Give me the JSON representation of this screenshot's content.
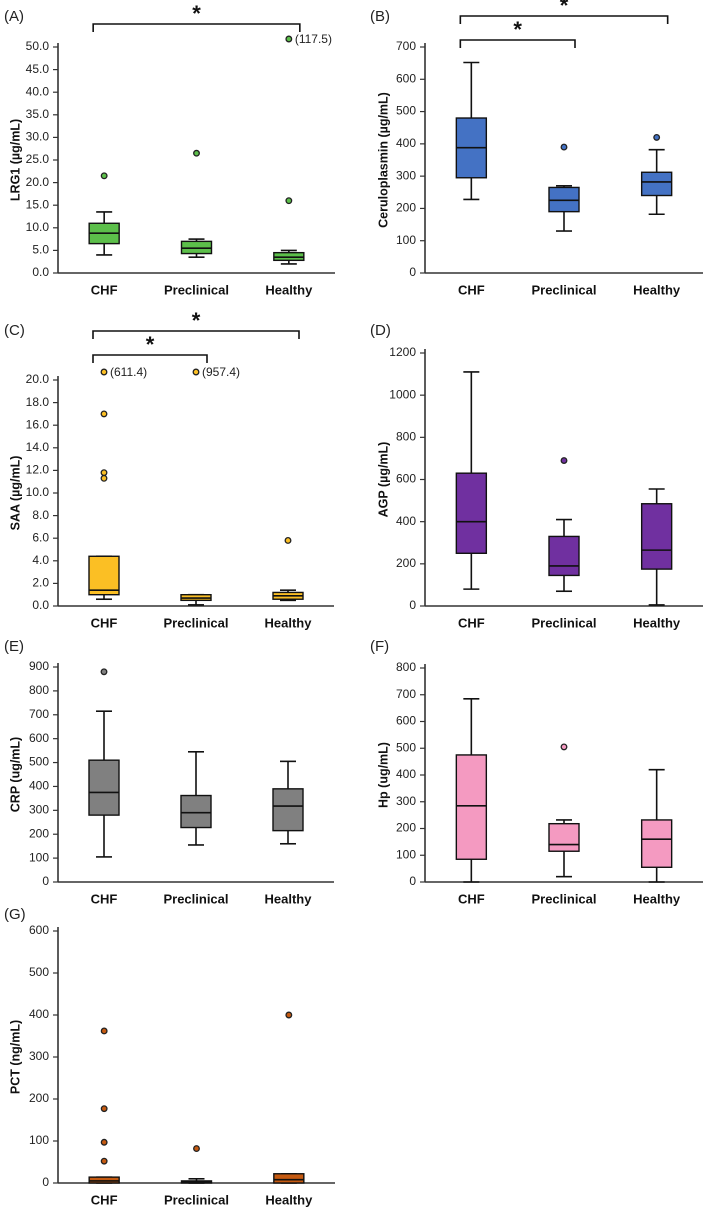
{
  "chart_data": [
    {
      "panel": "(A)",
      "type": "boxplot",
      "ylabel": "LRG1 (µg/mL)",
      "categories": [
        "CHF",
        "Preclinical",
        "Healthy"
      ],
      "ylim": [
        0,
        50
      ],
      "yticks": [
        "0.0",
        "5.0",
        "10.0",
        "15.0",
        "20.0",
        "25.0",
        "30.0",
        "35.0",
        "40.0",
        "45.0",
        "50.0"
      ],
      "ytick_values": [
        0,
        5,
        10,
        15,
        20,
        25,
        30,
        35,
        40,
        45,
        50
      ],
      "color": "#5cbf4a",
      "boxes": [
        {
          "min": 4.0,
          "q1": 6.5,
          "median": 8.8,
          "q3": 11.0,
          "max": 13.5,
          "outliers": [
            21.5
          ]
        },
        {
          "min": 3.5,
          "q1": 4.3,
          "median": 5.5,
          "q3": 7.0,
          "max": 7.5,
          "outliers": [
            26.5
          ]
        },
        {
          "min": 2.0,
          "q1": 2.8,
          "median": 3.5,
          "q3": 4.5,
          "max": 5.0,
          "outliers": [
            16.0
          ]
        }
      ],
      "capped_outliers": [
        {
          "group": 2,
          "label": "(117.5)"
        }
      ],
      "significance": [
        {
          "from": 0,
          "to": 2,
          "level": 0,
          "label": "*"
        }
      ]
    },
    {
      "panel": "(B)",
      "type": "boxplot",
      "ylabel": "Ceruloplasmin (µg/mL)",
      "categories": [
        "CHF",
        "Preclinical",
        "Healthy"
      ],
      "ylim": [
        0,
        700
      ],
      "yticks": [
        "0",
        "100",
        "200",
        "300",
        "400",
        "500",
        "600",
        "700"
      ],
      "ytick_values": [
        0,
        100,
        200,
        300,
        400,
        500,
        600,
        700
      ],
      "color": "#4472c4",
      "boxes": [
        {
          "min": 228,
          "q1": 295,
          "median": 388,
          "q3": 480,
          "max": 652,
          "outliers": []
        },
        {
          "min": 130,
          "q1": 190,
          "median": 225,
          "q3": 265,
          "max": 270,
          "outliers": [
            390
          ]
        },
        {
          "min": 182,
          "q1": 240,
          "median": 282,
          "q3": 312,
          "max": 382,
          "outliers": [
            420
          ]
        }
      ],
      "capped_outliers": [],
      "significance": [
        {
          "from": 0,
          "to": 1,
          "level": 0,
          "label": "*"
        },
        {
          "from": 0,
          "to": 2,
          "level": 1,
          "label": "*"
        }
      ]
    },
    {
      "panel": "(C)",
      "type": "boxplot",
      "ylabel": "SAA (µg/mL)",
      "categories": [
        "CHF",
        "Preclinical",
        "Healthy"
      ],
      "ylim": [
        0,
        20
      ],
      "yticks": [
        "0.0",
        "2.0",
        "4.0",
        "6.0",
        "8.0",
        "10.0",
        "12.0",
        "14.0",
        "16.0",
        "18.0",
        "20.0"
      ],
      "ytick_values": [
        0,
        2,
        4,
        6,
        8,
        10,
        12,
        14,
        16,
        18,
        20
      ],
      "color": "#fbbf24",
      "boxes": [
        {
          "min": 0.6,
          "q1": 1.0,
          "median": 1.4,
          "q3": 4.4,
          "max": 4.4,
          "outliers": [
            11.3,
            11.8,
            17.0
          ]
        },
        {
          "min": 0.1,
          "q1": 0.5,
          "median": 0.7,
          "q3": 1.0,
          "max": 1.0,
          "outliers": []
        },
        {
          "min": 0.5,
          "q1": 0.6,
          "median": 0.9,
          "q3": 1.2,
          "max": 1.4,
          "outliers": [
            5.8
          ]
        }
      ],
      "capped_outliers": [
        {
          "group": 0,
          "label": "(611.4)"
        },
        {
          "group": 1,
          "label": "(957.4)"
        }
      ],
      "significance": [
        {
          "from": 0,
          "to": 1,
          "level": 0,
          "label": "*"
        },
        {
          "from": 0,
          "to": 2,
          "level": 1,
          "label": "*"
        }
      ]
    },
    {
      "panel": "(D)",
      "type": "boxplot",
      "ylabel": "AGP (µg/mL)",
      "categories": [
        "CHF",
        "Preclinical",
        "Healthy"
      ],
      "ylim": [
        0,
        1200
      ],
      "yticks": [
        "0",
        "200",
        "400",
        "600",
        "800",
        "1000",
        "1200"
      ],
      "ytick_values": [
        0,
        200,
        400,
        600,
        800,
        1000,
        1200
      ],
      "color": "#7030a0",
      "boxes": [
        {
          "min": 80,
          "q1": 250,
          "median": 400,
          "q3": 630,
          "max": 1110,
          "outliers": []
        },
        {
          "min": 70,
          "q1": 145,
          "median": 190,
          "q3": 330,
          "max": 410,
          "outliers": [
            690
          ]
        },
        {
          "min": 5,
          "q1": 175,
          "median": 265,
          "q3": 485,
          "max": 555,
          "outliers": []
        }
      ],
      "capped_outliers": [],
      "significance": []
    },
    {
      "panel": "(E)",
      "type": "boxplot",
      "ylabel": "CRP (ug/mL)",
      "categories": [
        "CHF",
        "Preclinical",
        "Healthy"
      ],
      "ylim": [
        0,
        900
      ],
      "yticks": [
        "0",
        "100",
        "200",
        "300",
        "400",
        "500",
        "600",
        "700",
        "800",
        "900"
      ],
      "ytick_values": [
        0,
        100,
        200,
        300,
        400,
        500,
        600,
        700,
        800,
        900
      ],
      "color": "#808080",
      "boxes": [
        {
          "min": 105,
          "q1": 280,
          "median": 375,
          "q3": 510,
          "max": 715,
          "outliers": [
            880
          ]
        },
        {
          "min": 155,
          "q1": 228,
          "median": 290,
          "q3": 362,
          "max": 545,
          "outliers": []
        },
        {
          "min": 160,
          "q1": 215,
          "median": 318,
          "q3": 390,
          "max": 505,
          "outliers": []
        }
      ],
      "capped_outliers": [],
      "significance": []
    },
    {
      "panel": "(F)",
      "type": "boxplot",
      "ylabel": "Hp (ug/mL)",
      "categories": [
        "CHF",
        "Preclinical",
        "Healthy"
      ],
      "ylim": [
        0,
        800
      ],
      "yticks": [
        "0",
        "100",
        "200",
        "300",
        "400",
        "500",
        "600",
        "700",
        "800"
      ],
      "ytick_values": [
        0,
        100,
        200,
        300,
        400,
        500,
        600,
        700,
        800
      ],
      "color": "#f49ac1",
      "boxes": [
        {
          "min": 0,
          "q1": 85,
          "median": 285,
          "q3": 475,
          "max": 685,
          "outliers": []
        },
        {
          "min": 20,
          "q1": 115,
          "median": 140,
          "q3": 218,
          "max": 232,
          "outliers": [
            505
          ]
        },
        {
          "min": 0,
          "q1": 55,
          "median": 160,
          "q3": 232,
          "max": 420,
          "outliers": []
        }
      ],
      "capped_outliers": [],
      "significance": []
    },
    {
      "panel": "(G)",
      "type": "boxplot",
      "ylabel": "PCT (ng/mL)",
      "categories": [
        "CHF",
        "Preclinical",
        "Healthy"
      ],
      "ylim": [
        0,
        600
      ],
      "yticks": [
        "0",
        "100",
        "200",
        "300",
        "400",
        "500",
        "600"
      ],
      "ytick_values": [
        0,
        100,
        200,
        300,
        400,
        500,
        600
      ],
      "color": "#c55a11",
      "boxes": [
        {
          "min": 0,
          "q1": 0,
          "median": 5,
          "q3": 14,
          "max": 14,
          "outliers": [
            52,
            97,
            177,
            362
          ]
        },
        {
          "min": 0,
          "q1": 0,
          "median": 2,
          "q3": 5,
          "max": 10,
          "outliers": [
            82
          ]
        },
        {
          "min": 0,
          "q1": 0,
          "median": 8,
          "q3": 22,
          "max": 22,
          "outliers": [
            400
          ]
        }
      ],
      "capped_outliers": [],
      "significance": []
    }
  ]
}
